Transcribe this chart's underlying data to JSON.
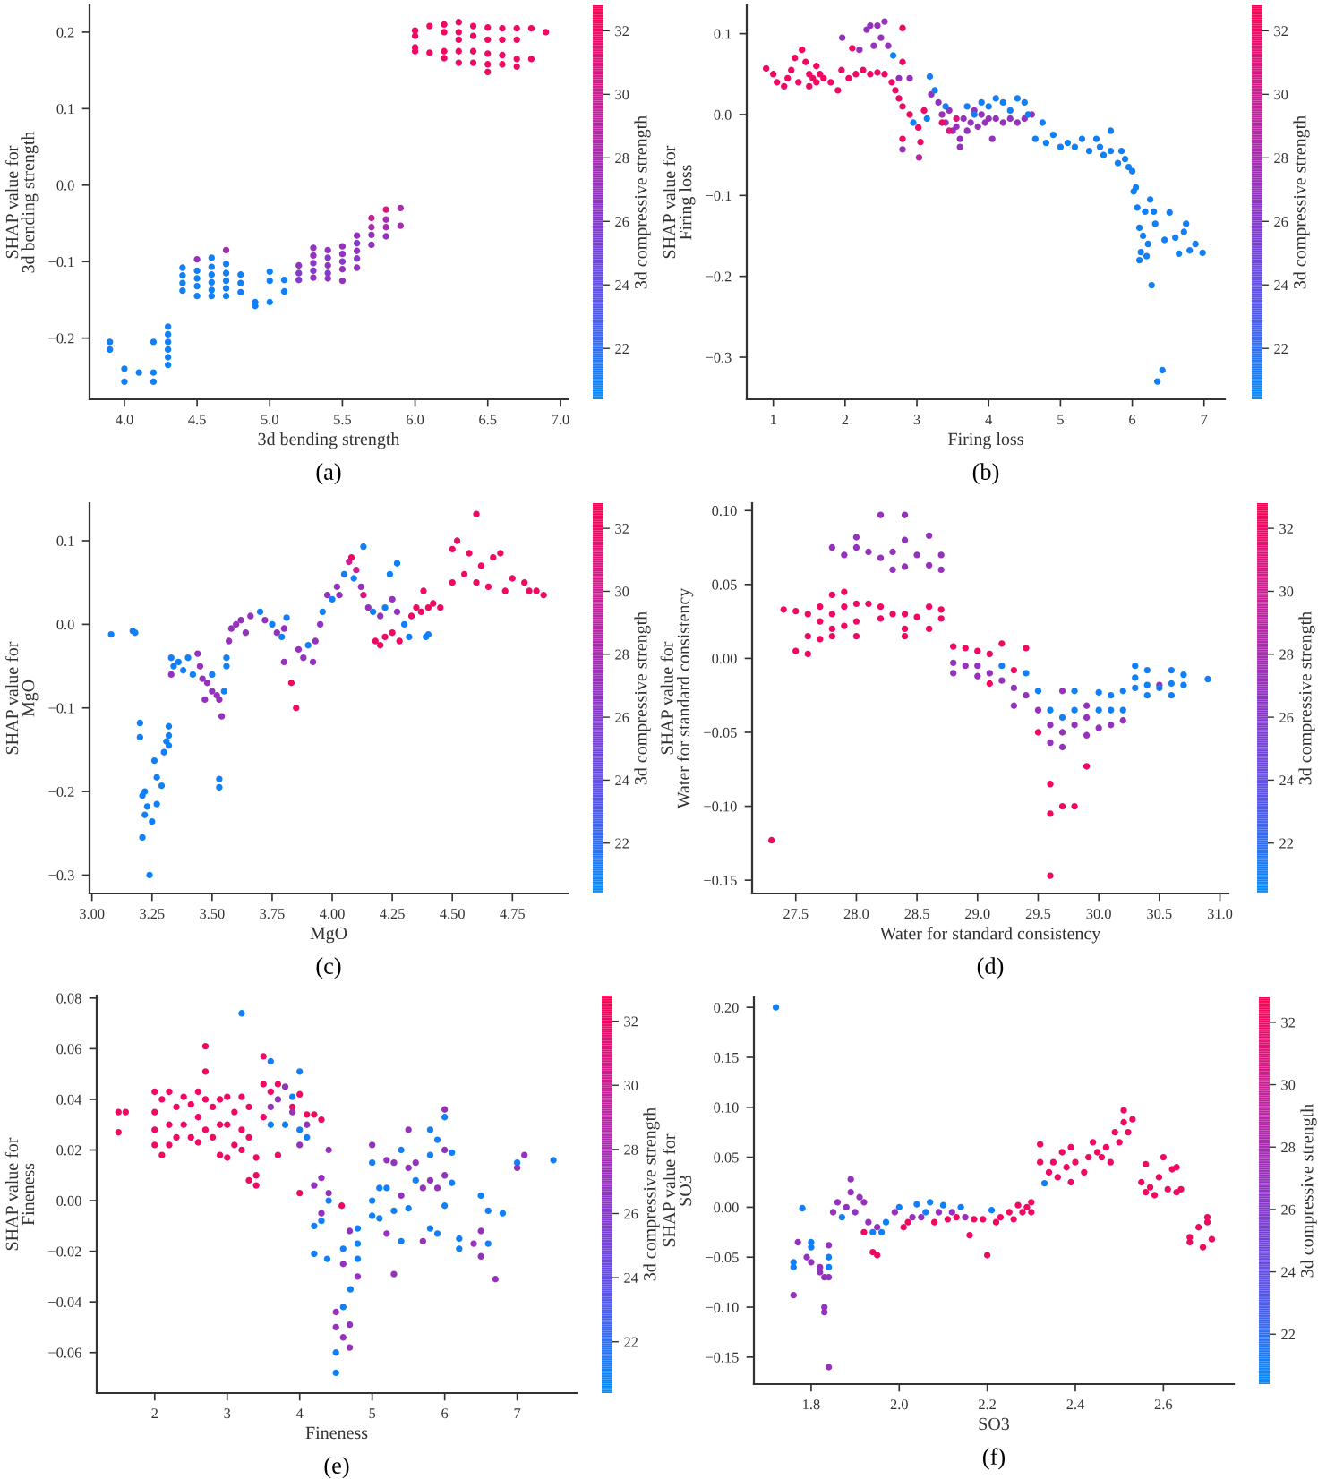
{
  "chart_data": [
    {
      "type": "scatter",
      "xlabel": "3d bending strength",
      "ylabel": "SHAP value for\n3d bending strength",
      "clabel": "3d compressive strength",
      "annotations": [
        "(a)"
      ],
      "marker": "circle",
      "x": [
        3.9,
        3.9,
        4.0,
        4.0,
        4.1,
        4.2,
        4.2,
        4.2,
        4.3,
        4.3,
        4.3,
        4.3,
        4.3,
        4.3,
        4.4,
        4.4,
        4.4,
        4.4,
        4.5,
        4.5,
        4.5,
        4.5,
        4.5,
        4.6,
        4.6,
        4.6,
        4.6,
        4.6,
        4.6,
        4.7,
        4.7,
        4.7,
        4.7,
        4.7,
        4.7,
        4.8,
        4.8,
        4.8,
        4.9,
        4.9,
        5.0,
        5.0,
        5.0,
        5.1,
        5.1,
        5.2,
        5.2,
        5.2,
        5.3,
        5.3,
        5.3,
        5.3,
        5.3,
        5.4,
        5.4,
        5.4,
        5.4,
        5.4,
        5.5,
        5.5,
        5.5,
        5.5,
        5.5,
        5.6,
        5.6,
        5.6,
        5.6,
        5.6,
        5.7,
        5.7,
        5.7,
        5.7,
        5.8,
        5.8,
        5.8,
        5.8,
        5.9,
        5.9,
        6.0,
        6.0,
        6.0,
        6.0,
        6.1,
        6.1,
        6.2,
        6.2,
        6.2,
        6.2,
        6.3,
        6.3,
        6.3,
        6.3,
        6.3,
        6.4,
        6.4,
        6.4,
        6.4,
        6.5,
        6.5,
        6.5,
        6.5,
        6.5,
        6.6,
        6.6,
        6.6,
        6.6,
        6.7,
        6.7,
        6.7,
        6.7,
        6.8,
        6.8,
        6.9
      ],
      "values": [
        -0.205,
        -0.215,
        -0.24,
        -0.257,
        -0.245,
        -0.205,
        -0.245,
        -0.257,
        -0.185,
        -0.195,
        -0.205,
        -0.215,
        -0.225,
        -0.235,
        -0.108,
        -0.118,
        -0.128,
        -0.138,
        -0.097,
        -0.112,
        -0.122,
        -0.132,
        -0.145,
        -0.095,
        -0.107,
        -0.117,
        -0.127,
        -0.137,
        -0.145,
        -0.085,
        -0.103,
        -0.115,
        -0.125,
        -0.135,
        -0.145,
        -0.117,
        -0.128,
        -0.14,
        -0.153,
        -0.158,
        -0.113,
        -0.125,
        -0.153,
        -0.124,
        -0.139,
        -0.105,
        -0.115,
        -0.124,
        -0.082,
        -0.092,
        -0.102,
        -0.112,
        -0.121,
        -0.085,
        -0.095,
        -0.105,
        -0.115,
        -0.122,
        -0.08,
        -0.09,
        -0.1,
        -0.11,
        -0.125,
        -0.066,
        -0.076,
        -0.086,
        -0.096,
        -0.108,
        -0.043,
        -0.055,
        -0.065,
        -0.078,
        -0.032,
        -0.045,
        -0.055,
        -0.067,
        -0.03,
        -0.053,
        0.202,
        0.195,
        0.18,
        0.175,
        0.208,
        0.173,
        0.21,
        0.2,
        0.175,
        0.166,
        0.213,
        0.2,
        0.19,
        0.175,
        0.16,
        0.208,
        0.195,
        0.175,
        0.16,
        0.206,
        0.19,
        0.172,
        0.158,
        0.148,
        0.205,
        0.19,
        0.17,
        0.158,
        0.205,
        0.19,
        0.165,
        0.155,
        0.205,
        0.165,
        0.2
      ],
      "cvalues": [
        21,
        21,
        21,
        21,
        21,
        21,
        21,
        21,
        21,
        21,
        21,
        21,
        21,
        21,
        21,
        21,
        21,
        21,
        27,
        21,
        21,
        21,
        21,
        21,
        21,
        21,
        21,
        21,
        21,
        28,
        21,
        21,
        21,
        21,
        21,
        21,
        21,
        21,
        21,
        21,
        21,
        21,
        21,
        21,
        21,
        27,
        26,
        26,
        27,
        27,
        26,
        26,
        27,
        27,
        26,
        27,
        26,
        27,
        27,
        27,
        26,
        27,
        27,
        27,
        26,
        27,
        26,
        27,
        30,
        28,
        27,
        27,
        31,
        28,
        28,
        27,
        28,
        28,
        32,
        32,
        32,
        32,
        32,
        32,
        32,
        32,
        32,
        32,
        32,
        32,
        32,
        32,
        32,
        32,
        32,
        32,
        32,
        32,
        32,
        32,
        32,
        32,
        32,
        32,
        32,
        32,
        32,
        32,
        32,
        32,
        32,
        32,
        32
      ],
      "xlim": [
        3.76,
        7.05
      ],
      "ylim": [
        -0.28,
        0.235
      ],
      "xticks": [
        {
          "value": 4,
          "label": "4.0"
        },
        4.5,
        {
          "value": 5,
          "label": "5.0"
        },
        5.5,
        {
          "value": 6,
          "label": "6.0"
        },
        6.5,
        {
          "value": 7,
          "label": "7.0"
        }
      ],
      "yticks": [
        {
          "value": -0.2,
          "label": "−0.2"
        },
        {
          "value": -0.1,
          "label": "−0.1"
        },
        {
          "value": 0,
          "label": "0.0"
        },
        0.1,
        0.2
      ],
      "clim": [
        20.4,
        32.8
      ],
      "cticks": [
        22,
        24,
        26,
        28,
        30,
        32
      ]
    },
    {
      "type": "scatter",
      "xlabel": "Firing loss",
      "ylabel": "SHAP value for\nFiring loss",
      "clabel": "3d compressive strength",
      "annotations": [
        "(b)"
      ],
      "marker": "circle",
      "x": [
        0.9,
        1.0,
        1.05,
        1.15,
        1.2,
        1.25,
        1.3,
        1.35,
        1.4,
        1.45,
        1.5,
        1.5,
        1.55,
        1.6,
        1.6,
        1.65,
        1.7,
        1.8,
        1.9,
        1.95,
        2.05,
        2.1,
        2.15,
        2.25,
        2.35,
        2.45,
        2.55,
        2.65,
        2.7,
        2.75,
        2.8,
        2.8,
        1.96,
        2.2,
        2.3,
        2.35,
        2.4,
        2.45,
        2.55,
        2.5,
        2.6,
        2.75,
        2.8,
        2.9,
        2.67,
        2.8,
        2.8,
        2.9,
        2.95,
        3.02,
        3.03,
        3.05,
        3.1,
        3.14,
        3.18,
        3.2,
        3.25,
        3.3,
        3.35,
        3.4,
        3.45,
        3.5,
        3.55,
        3.6,
        3.6,
        3.65,
        3.7,
        3.75,
        3.8,
        3.85,
        3.9,
        3.95,
        4.0,
        4.05,
        4.1,
        4.2,
        4.3,
        4.4,
        4.5,
        4.6,
        3.35,
        3.45,
        3.55,
        3.4,
        3.7,
        3.8,
        3.9,
        4.0,
        4.1,
        4.2,
        4.3,
        4.4,
        4.5,
        4.55,
        4.65,
        4.75,
        4.8,
        4.9,
        5.0,
        5.1,
        5.2,
        5.3,
        5.4,
        5.5,
        5.55,
        5.6,
        5.7,
        5.7,
        5.8,
        5.85,
        5.9,
        5.95,
        6.0,
        6.02,
        6.05,
        6.07,
        6.1,
        6.1,
        6.12,
        6.15,
        6.18,
        6.2,
        6.22,
        6.25,
        6.27,
        6.3,
        6.32,
        6.35,
        6.42,
        6.45,
        6.52,
        6.6,
        6.65,
        6.72,
        6.75,
        6.8,
        6.88,
        6.98
      ],
      "values": [
        0.057,
        0.05,
        0.04,
        0.035,
        0.045,
        0.055,
        0.07,
        0.04,
        0.08,
        0.065,
        0.035,
        0.05,
        0.045,
        0.06,
        0.04,
        0.05,
        0.045,
        0.04,
        0.03,
        0.055,
        0.045,
        0.082,
        0.05,
        0.055,
        0.05,
        0.052,
        0.05,
        0.04,
        0.03,
        0.02,
        0.107,
        0.065,
        0.095,
        0.08,
        0.105,
        0.11,
        0.085,
        0.11,
        0.115,
        0.095,
        0.085,
        0.045,
        -0.043,
        0.045,
        0.073,
        0.01,
        -0.03,
        0.0,
        -0.01,
        -0.016,
        -0.053,
        -0.034,
        0.005,
        -0.005,
        0.047,
        0.025,
        0.03,
        0.015,
        0.0,
        -0.01,
        0.005,
        -0.02,
        -0.015,
        -0.03,
        -0.04,
        -0.005,
        -0.02,
        -0.01,
        0.005,
        -0.015,
        0.0,
        -0.01,
        -0.005,
        -0.03,
        -0.005,
        -0.01,
        -0.005,
        -0.01,
        -0.005,
        0.0,
        -0.01,
        -0.02,
        -0.005,
        0.01,
        0.01,
        0.0,
        0.015,
        0.01,
        0.02,
        0.015,
        0.005,
        0.02,
        0.015,
        0.0,
        -0.03,
        -0.01,
        -0.035,
        -0.025,
        -0.04,
        -0.035,
        -0.04,
        -0.03,
        -0.045,
        -0.03,
        -0.04,
        -0.05,
        -0.02,
        -0.045,
        -0.06,
        -0.045,
        -0.055,
        -0.065,
        -0.07,
        -0.095,
        -0.09,
        -0.115,
        -0.14,
        -0.18,
        -0.17,
        -0.15,
        -0.12,
        -0.175,
        -0.16,
        -0.105,
        -0.211,
        -0.12,
        -0.135,
        -0.33,
        -0.316,
        -0.155,
        -0.121,
        -0.152,
        -0.172,
        -0.145,
        -0.135,
        -0.168,
        -0.16,
        -0.171
      ],
      "cvalues": [
        32,
        32,
        32,
        32,
        32,
        32,
        32,
        32,
        32,
        32,
        32,
        32,
        32,
        32,
        32,
        32,
        32,
        32,
        32,
        32,
        32,
        32,
        32,
        32,
        32,
        32,
        32,
        32,
        32,
        32,
        32,
        32,
        27,
        27,
        27,
        27,
        27,
        27,
        27,
        27,
        27,
        27,
        27,
        27,
        21,
        32,
        32,
        32,
        21,
        32,
        29,
        32,
        32,
        21,
        21,
        27,
        21,
        27,
        27,
        27,
        27,
        27,
        27,
        27,
        27,
        27,
        27,
        27,
        27,
        27,
        27,
        27,
        27,
        27,
        27,
        27,
        27,
        27,
        27,
        27,
        32,
        31,
        31,
        21,
        21,
        21,
        21,
        21,
        21,
        21,
        21,
        21,
        21,
        21,
        21,
        21,
        21,
        21,
        21,
        21,
        21,
        21,
        21,
        21,
        21,
        21,
        21,
        21,
        21,
        21,
        21,
        21,
        21,
        21,
        21,
        21,
        21,
        21,
        21,
        21,
        21,
        21,
        21,
        21,
        21,
        21,
        21,
        21,
        21,
        21,
        21,
        21,
        21,
        21,
        21,
        21,
        21,
        21
      ],
      "xlim": [
        0.63,
        7.29
      ],
      "ylim": [
        -0.352,
        0.135
      ],
      "xticks": [
        1,
        2,
        3,
        4,
        5,
        6,
        7
      ],
      "yticks": [
        {
          "value": -0.3,
          "label": "−0.3"
        },
        {
          "value": -0.2,
          "label": "−0.2"
        },
        {
          "value": -0.1,
          "label": "−0.1"
        },
        {
          "value": 0,
          "label": "0.0"
        },
        0.1
      ],
      "clim": [
        20.4,
        32.8
      ],
      "cticks": [
        22,
        24,
        26,
        28,
        30,
        32
      ]
    },
    {
      "type": "scatter",
      "xlabel": "MgO",
      "ylabel": "SHAP value for\nMgO",
      "clabel": "3d compressive strength",
      "annotations": [
        "(c)"
      ],
      "marker": "circle",
      "x": [
        3.08,
        3.17,
        3.18,
        3.2,
        3.2,
        3.21,
        3.21,
        3.22,
        3.22,
        3.23,
        3.24,
        3.25,
        3.26,
        3.27,
        3.27,
        3.29,
        3.3,
        3.31,
        3.32,
        3.32,
        3.32,
        3.33,
        3.34,
        3.36,
        3.38,
        3.4,
        3.42,
        3.44,
        3.45,
        3.46,
        3.48,
        3.5,
        3.5,
        3.52,
        3.53,
        3.54,
        3.53,
        3.53,
        3.55,
        3.56,
        3.56,
        3.33,
        3.47,
        3.57,
        3.58,
        3.6,
        3.62,
        3.64,
        3.66,
        3.7,
        3.72,
        3.75,
        3.77,
        3.79,
        3.8,
        3.81,
        3.8,
        3.83,
        3.85,
        3.86,
        3.88,
        3.9,
        3.92,
        3.93,
        3.95,
        3.96,
        3.98,
        4.0,
        4.02,
        4.03,
        4.05,
        4.07,
        4.08,
        4.09,
        4.1,
        4.12,
        4.13,
        4.13,
        4.15,
        4.17,
        4.2,
        4.22,
        4.25,
        4.27,
        4.24,
        4.27,
        4.18,
        4.2,
        4.22,
        4.25,
        4.28,
        4.3,
        4.32,
        4.33,
        4.35,
        4.37,
        4.4,
        4.42,
        4.45,
        4.38,
        4.39,
        4.4,
        4.5,
        4.5,
        4.52,
        4.55,
        4.57,
        4.6,
        4.6,
        4.62,
        4.65,
        4.67,
        4.7,
        4.72,
        4.75,
        4.8,
        4.82,
        4.85,
        4.88
      ],
      "values": [
        -0.012,
        -0.008,
        -0.01,
        -0.118,
        -0.135,
        -0.205,
        -0.255,
        -0.2,
        -0.228,
        -0.218,
        -0.3,
        -0.236,
        -0.163,
        -0.183,
        -0.215,
        -0.193,
        -0.153,
        -0.14,
        -0.122,
        -0.133,
        -0.145,
        -0.04,
        -0.05,
        -0.045,
        -0.055,
        -0.04,
        -0.06,
        -0.035,
        -0.05,
        -0.065,
        -0.07,
        -0.08,
        -0.06,
        -0.085,
        -0.09,
        -0.11,
        -0.185,
        -0.195,
        -0.08,
        -0.04,
        -0.05,
        -0.06,
        -0.09,
        -0.02,
        -0.005,
        0.0,
        0.005,
        -0.01,
        0.01,
        0.015,
        0.005,
        0.0,
        -0.01,
        -0.015,
        -0.005,
        0.008,
        -0.045,
        -0.07,
        -0.1,
        -0.03,
        -0.04,
        -0.025,
        -0.045,
        -0.02,
        0.0,
        0.015,
        0.035,
        0.03,
        0.045,
        0.035,
        0.06,
        0.075,
        0.08,
        0.055,
        0.065,
        0.045,
        0.093,
        0.035,
        0.02,
        0.015,
        0.01,
        0.02,
        0.03,
        0.015,
        0.06,
        0.073,
        -0.02,
        -0.025,
        -0.015,
        -0.01,
        -0.02,
        0.0,
        -0.015,
        0.01,
        0.02,
        0.015,
        0.02,
        0.025,
        0.02,
        0.04,
        -0.015,
        -0.012,
        0.05,
        0.09,
        0.1,
        0.06,
        0.085,
        0.05,
        0.132,
        0.07,
        0.045,
        0.08,
        0.085,
        0.04,
        0.055,
        0.05,
        0.04,
        0.04,
        0.035
      ],
      "cvalues": [
        21,
        21,
        21,
        21,
        21,
        21,
        21,
        21,
        21,
        21,
        21,
        21,
        21,
        21,
        21,
        21,
        21,
        21,
        21,
        21,
        21,
        21,
        21,
        21,
        21,
        21,
        21,
        27,
        27,
        27,
        27,
        27,
        21,
        27,
        27,
        27,
        21,
        21,
        21,
        21,
        21,
        27,
        27,
        27,
        27,
        27,
        27,
        27,
        27,
        21,
        27,
        21,
        27,
        21,
        27,
        21,
        27,
        32,
        32,
        27,
        27,
        21,
        27,
        27,
        27,
        21,
        27,
        21,
        27,
        27,
        21,
        30,
        32,
        21,
        30,
        27,
        21,
        31,
        27,
        21,
        27,
        21,
        27,
        27,
        21,
        21,
        32,
        32,
        32,
        32,
        32,
        21,
        21,
        32,
        32,
        32,
        32,
        32,
        32,
        32,
        21,
        21,
        32,
        32,
        32,
        32,
        32,
        32,
        32,
        32,
        32,
        32,
        32,
        32,
        32,
        32,
        32,
        32,
        32
      ],
      "xlim": [
        2.99,
        4.98
      ],
      "ylim": [
        -0.322,
        0.145
      ],
      "xticks": [
        {
          "value": 3.0,
          "label": "3.00"
        },
        3.25,
        {
          "value": 3.5,
          "label": "3.50"
        },
        3.75,
        {
          "value": 4.0,
          "label": "4.00"
        },
        4.25,
        {
          "value": 4.5,
          "label": "4.50"
        },
        4.75
      ],
      "yticks": [
        {
          "value": -0.3,
          "label": "−0.3"
        },
        {
          "value": -0.2,
          "label": "−0.2"
        },
        {
          "value": -0.1,
          "label": "−0.1"
        },
        {
          "value": 0,
          "label": "0.0"
        },
        0.1
      ],
      "clim": [
        20.4,
        32.8
      ],
      "cticks": [
        22,
        24,
        26,
        28,
        30,
        32
      ]
    },
    {
      "type": "scatter",
      "xlabel": "Water for standard consistency",
      "ylabel": "SHAP value for\nWater for standard consistency",
      "clabel": "3d compressive strength",
      "annotations": [
        "(d)"
      ],
      "marker": "circle",
      "x": [
        27.3,
        27.4,
        27.5,
        27.5,
        27.6,
        27.6,
        27.6,
        27.7,
        27.7,
        27.7,
        27.8,
        27.8,
        27.8,
        27.8,
        27.9,
        27.9,
        27.9,
        28.0,
        28.0,
        28.0,
        28.1,
        28.2,
        28.2,
        28.3,
        28.4,
        28.4,
        28.4,
        28.5,
        28.6,
        28.6,
        28.7,
        28.7,
        27.8,
        27.9,
        28.0,
        28.0,
        28.1,
        28.2,
        28.2,
        28.3,
        28.3,
        28.4,
        28.4,
        28.4,
        28.5,
        28.6,
        28.6,
        28.7,
        28.7,
        28.8,
        28.8,
        28.8,
        28.9,
        28.9,
        29.0,
        29.0,
        29.0,
        29.1,
        29.1,
        29.1,
        29.2,
        29.2,
        29.2,
        29.3,
        29.3,
        29.3,
        29.4,
        29.4,
        29.4,
        29.5,
        29.5,
        29.5,
        29.6,
        29.6,
        29.6,
        29.6,
        29.6,
        29.6,
        29.7,
        29.7,
        29.7,
        29.7,
        29.7,
        29.8,
        29.8,
        29.8,
        29.8,
        29.9,
        29.9,
        29.9,
        29.9,
        30.0,
        30.0,
        30.0,
        30.1,
        30.1,
        30.1,
        30.2,
        30.2,
        30.2,
        30.3,
        30.3,
        30.3,
        30.4,
        30.4,
        30.4,
        30.5,
        30.5,
        30.6,
        30.6,
        30.6,
        30.7,
        30.7,
        30.9
      ],
      "values": [
        -0.123,
        0.033,
        0.032,
        0.005,
        0.03,
        0.015,
        0.003,
        0.035,
        0.025,
        0.013,
        0.043,
        0.03,
        0.02,
        0.015,
        0.045,
        0.035,
        0.022,
        0.037,
        0.025,
        0.015,
        0.037,
        0.035,
        0.027,
        0.03,
        0.03,
        0.02,
        0.015,
        0.028,
        0.035,
        0.02,
        0.033,
        0.027,
        0.075,
        0.07,
        0.082,
        0.075,
        0.072,
        0.097,
        0.068,
        0.072,
        0.06,
        0.097,
        0.08,
        0.062,
        0.07,
        0.083,
        0.063,
        0.07,
        0.06,
        0.008,
        -0.003,
        -0.01,
        0.007,
        -0.005,
        0.005,
        -0.005,
        -0.012,
        0.003,
        -0.017,
        -0.01,
        0.01,
        -0.005,
        -0.015,
        -0.008,
        -0.02,
        -0.032,
        0.007,
        -0.01,
        -0.025,
        -0.022,
        -0.035,
        -0.05,
        -0.035,
        -0.045,
        -0.057,
        -0.085,
        -0.105,
        -0.147,
        -0.022,
        -0.04,
        -0.05,
        -0.06,
        -0.1,
        -0.022,
        -0.035,
        -0.045,
        -0.1,
        -0.032,
        -0.04,
        -0.052,
        -0.073,
        -0.023,
        -0.035,
        -0.047,
        -0.025,
        -0.035,
        -0.045,
        -0.022,
        -0.035,
        -0.042,
        -0.005,
        -0.013,
        -0.02,
        -0.008,
        -0.018,
        -0.025,
        -0.018,
        -0.02,
        -0.008,
        -0.017,
        -0.025,
        -0.011,
        -0.018,
        -0.014
      ],
      "cvalues": [
        32,
        32,
        32,
        32,
        32,
        32,
        32,
        32,
        32,
        32,
        32,
        32,
        32,
        32,
        32,
        32,
        32,
        32,
        32,
        32,
        32,
        32,
        32,
        32,
        32,
        32,
        32,
        32,
        32,
        32,
        32,
        32,
        27,
        27,
        27,
        27,
        27,
        27,
        27,
        27,
        27,
        27,
        27,
        27,
        27,
        27,
        27,
        27,
        27,
        32,
        27,
        27,
        32,
        27,
        32,
        27,
        27,
        32,
        32,
        27,
        32,
        21,
        27,
        32,
        27,
        27,
        32,
        21,
        27,
        21,
        27,
        32,
        21,
        27,
        27,
        32,
        32,
        32,
        27,
        21,
        27,
        27,
        32,
        21,
        21,
        27,
        32,
        27,
        27,
        27,
        32,
        21,
        21,
        27,
        21,
        21,
        27,
        21,
        21,
        27,
        21,
        21,
        21,
        21,
        21,
        21,
        27,
        21,
        21,
        21,
        21,
        21,
        21,
        21
      ],
      "xlim": [
        27.14,
        31.07
      ],
      "ylim": [
        -0.159,
        0.105
      ],
      "xticks": [
        27.5,
        {
          "value": 28,
          "label": "28.0"
        },
        28.5,
        {
          "value": 29,
          "label": "29.0"
        },
        29.5,
        {
          "value": 30,
          "label": "30.0"
        },
        30.5,
        {
          "value": 31,
          "label": "31.0"
        }
      ],
      "yticks": [
        {
          "value": -0.15,
          "label": "−0.15"
        },
        {
          "value": -0.1,
          "label": "−0.10"
        },
        {
          "value": -0.05,
          "label": "−0.05"
        },
        {
          "value": 0,
          "label": "0.00"
        },
        0.05,
        {
          "value": 0.1,
          "label": "0.10"
        }
      ],
      "clim": [
        20.4,
        32.8
      ],
      "cticks": [
        22,
        24,
        26,
        28,
        30,
        32
      ]
    },
    {
      "type": "scatter",
      "xlabel": "Fineness",
      "ylabel": "SHAP value for\nFineness",
      "clabel": "3d compressive strength",
      "annotations": [
        "(e)"
      ],
      "marker": "circle",
      "x": [
        1.5,
        1.5,
        1.6,
        2.0,
        2.0,
        2.0,
        2.0,
        2.1,
        2.1,
        2.2,
        2.2,
        2.2,
        2.3,
        2.3,
        2.4,
        2.4,
        2.5,
        2.5,
        2.6,
        2.6,
        2.6,
        2.7,
        2.7,
        2.7,
        2.7,
        2.8,
        2.8,
        2.9,
        2.9,
        2.9,
        3.0,
        3.0,
        3.0,
        3.1,
        3.1,
        3.2,
        3.2,
        3.2,
        3.3,
        3.3,
        3.3,
        3.4,
        3.4,
        3.4,
        3.5,
        3.5,
        3.5,
        3.6,
        3.7,
        3.7,
        3.9,
        4.0,
        4.0,
        4.1,
        4.2,
        4.3,
        3.2,
        3.6,
        3.6,
        3.8,
        3.9,
        4.0,
        4.0,
        4.1,
        3.6,
        3.7,
        3.8,
        3.9,
        4.0,
        4.1,
        4.2,
        4.2,
        4.2,
        4.3,
        4.3,
        4.3,
        4.4,
        4.4,
        4.4,
        4.38,
        4.5,
        4.5,
        4.5,
        4.5,
        4.58,
        4.6,
        4.6,
        4.6,
        4.6,
        4.69,
        4.69,
        4.69,
        4.8,
        4.8,
        4.8,
        4.7,
        4.8,
        5.0,
        5.0,
        5.0,
        5.0,
        5.1,
        5.1,
        5.2,
        5.2,
        5.2,
        5.3,
        5.3,
        5.3,
        5.4,
        5.4,
        5.4,
        5.5,
        5.5,
        5.5,
        5.6,
        5.6,
        5.7,
        5.7,
        5.8,
        5.8,
        5.8,
        5.8,
        5.9,
        5.9,
        5.9,
        6.0,
        6.0,
        6.0,
        6.0,
        6.0,
        6.1,
        6.1,
        6.2,
        6.2,
        6.4,
        6.5,
        6.5,
        6.5,
        6.6,
        6.6,
        6.7,
        6.8,
        7.0,
        7.0,
        7.1,
        7.5
      ],
      "values": [
        0.035,
        0.027,
        0.035,
        0.043,
        0.035,
        0.028,
        0.022,
        0.04,
        0.018,
        0.043,
        0.03,
        0.022,
        0.037,
        0.025,
        0.041,
        0.03,
        0.038,
        0.025,
        0.043,
        0.033,
        0.023,
        0.061,
        0.051,
        0.04,
        0.028,
        0.037,
        0.025,
        0.04,
        0.03,
        0.018,
        0.041,
        0.03,
        0.017,
        0.035,
        0.022,
        0.041,
        0.028,
        0.02,
        0.037,
        0.025,
        0.008,
        0.017,
        0.01,
        0.006,
        0.057,
        0.046,
        0.033,
        0.043,
        0.046,
        0.018,
        0.037,
        0.042,
        0.003,
        0.034,
        0.034,
        0.032,
        0.074,
        0.055,
        0.03,
        0.03,
        0.041,
        0.051,
        0.028,
        0.025,
        0.037,
        0.04,
        0.045,
        0.035,
        0.022,
        0.03,
        -0.021,
        -0.01,
        0.006,
        0.009,
        -0.005,
        -0.008,
        0.02,
        0.003,
        0.0,
        -0.023,
        -0.044,
        -0.05,
        -0.06,
        -0.068,
        -0.002,
        -0.019,
        -0.025,
        -0.042,
        -0.054,
        -0.012,
        -0.049,
        -0.058,
        -0.011,
        -0.023,
        -0.03,
        -0.035,
        -0.017,
        0.022,
        0.015,
        0.0,
        -0.006,
        0.005,
        -0.007,
        0.016,
        0.005,
        -0.013,
        0.015,
        -0.004,
        -0.029,
        0.02,
        -0.016,
        0.002,
        0.028,
        0.013,
        -0.003,
        0.015,
        0.008,
        0.005,
        -0.016,
        0.028,
        0.018,
        0.008,
        -0.011,
        0.024,
        -0.013,
        0.005,
        0.036,
        0.033,
        0.02,
        0.01,
        -0.002,
        0.019,
        0.007,
        -0.015,
        -0.019,
        -0.017,
        0.002,
        -0.012,
        -0.022,
        -0.004,
        -0.017,
        -0.031,
        -0.005,
        0.015,
        0.013,
        0.018,
        0.016
      ],
      "cvalues": [
        32,
        32,
        32,
        32,
        32,
        32,
        32,
        32,
        32,
        32,
        32,
        32,
        32,
        32,
        32,
        32,
        32,
        32,
        32,
        32,
        32,
        32,
        32,
        32,
        32,
        32,
        32,
        32,
        32,
        32,
        32,
        32,
        32,
        32,
        32,
        32,
        32,
        32,
        32,
        32,
        32,
        32,
        32,
        32,
        32,
        32,
        32,
        32,
        32,
        32,
        32,
        32,
        32,
        32,
        32,
        32,
        21,
        21,
        21,
        21,
        21,
        21,
        21,
        21,
        27,
        27,
        27,
        27,
        27,
        27,
        21,
        21,
        27,
        27,
        27,
        21,
        27,
        27,
        21,
        21,
        27,
        27,
        21,
        21,
        32,
        21,
        27,
        21,
        27,
        27,
        27,
        27,
        21,
        21,
        27,
        21,
        21,
        27,
        21,
        21,
        21,
        21,
        21,
        27,
        21,
        27,
        27,
        21,
        27,
        21,
        21,
        27,
        27,
        27,
        21,
        27,
        21,
        27,
        27,
        21,
        21,
        27,
        21,
        21,
        21,
        27,
        27,
        21,
        27,
        27,
        21,
        21,
        21,
        21,
        21,
        27,
        21,
        27,
        27,
        21,
        21,
        27,
        21,
        21,
        27,
        27,
        21
      ],
      "xlim": [
        1.2,
        7.82
      ],
      "ylim": [
        -0.076,
        0.081
      ],
      "xticks": [
        2,
        3,
        4,
        5,
        6,
        7
      ],
      "yticks": [
        {
          "value": -0.06,
          "label": "−0.06"
        },
        {
          "value": -0.04,
          "label": "−0.04"
        },
        {
          "value": -0.02,
          "label": "−0.02"
        },
        {
          "value": 0,
          "label": "0.00"
        },
        0.02,
        0.04,
        0.06,
        0.08
      ],
      "clim": [
        20.4,
        32.8
      ],
      "cticks": [
        22,
        24,
        26,
        28,
        30,
        32
      ]
    },
    {
      "type": "scatter",
      "xlabel": "SO3",
      "ylabel": "SHAP value for\nSO3",
      "clabel": "3d compressive strength",
      "annotations": [
        "(f)"
      ],
      "marker": "circle",
      "x": [
        1.72,
        1.76,
        1.76,
        1.76,
        1.77,
        1.78,
        1.79,
        1.8,
        1.8,
        1.8,
        1.82,
        1.82,
        1.83,
        1.83,
        1.83,
        1.84,
        1.84,
        1.84,
        1.84,
        1.84,
        1.85,
        1.86,
        1.87,
        1.88,
        1.89,
        1.89,
        1.9,
        1.91,
        1.92,
        1.92,
        1.93,
        1.94,
        1.94,
        1.95,
        1.95,
        1.96,
        1.97,
        1.99,
        2.0,
        2.01,
        2.02,
        2.03,
        2.04,
        2.05,
        2.06,
        2.07,
        2.08,
        2.09,
        2.1,
        2.11,
        2.12,
        2.13,
        2.14,
        2.15,
        2.16,
        2.17,
        2.19,
        2.2,
        2.21,
        2.22,
        2.23,
        2.25,
        2.26,
        2.27,
        2.28,
        2.29,
        2.3,
        2.3,
        2.32,
        2.32,
        2.33,
        2.34,
        2.35,
        2.36,
        2.37,
        2.38,
        2.39,
        2.39,
        2.4,
        2.42,
        2.43,
        2.44,
        2.45,
        2.46,
        2.47,
        2.48,
        2.49,
        2.5,
        2.51,
        2.51,
        2.52,
        2.53,
        2.55,
        2.56,
        2.56,
        2.57,
        2.58,
        2.59,
        2.6,
        2.61,
        2.62,
        2.63,
        2.63,
        2.64,
        2.66,
        2.66,
        2.68,
        2.69,
        2.7,
        2.7,
        2.71
      ],
      "values": [
        0.2,
        -0.055,
        -0.06,
        -0.088,
        -0.035,
        -0.001,
        -0.05,
        -0.035,
        -0.04,
        -0.055,
        -0.06,
        -0.065,
        -0.07,
        -0.1,
        -0.105,
        -0.05,
        -0.06,
        -0.07,
        -0.16,
        -0.038,
        -0.005,
        0.005,
        -0.01,
        0.0,
        0.028,
        0.015,
        -0.005,
        0.01,
        0.005,
        -0.025,
        -0.015,
        -0.025,
        -0.045,
        -0.048,
        -0.02,
        -0.025,
        -0.015,
        -0.005,
        0.0,
        -0.02,
        -0.015,
        -0.01,
        0.003,
        -0.01,
        -0.005,
        0.005,
        -0.015,
        -0.005,
        0.002,
        -0.012,
        -0.005,
        -0.01,
        0.0,
        -0.01,
        -0.028,
        -0.012,
        -0.012,
        -0.048,
        -0.003,
        -0.015,
        -0.01,
        -0.005,
        -0.012,
        0.002,
        -0.005,
        0.0,
        0.005,
        -0.005,
        0.045,
        0.063,
        0.024,
        0.035,
        0.045,
        0.03,
        0.055,
        0.04,
        0.025,
        0.06,
        0.045,
        0.035,
        0.05,
        0.065,
        0.055,
        0.05,
        0.06,
        0.045,
        0.075,
        0.065,
        0.097,
        0.085,
        0.075,
        0.088,
        0.025,
        0.043,
        0.015,
        0.02,
        0.012,
        0.03,
        0.05,
        0.018,
        0.038,
        0.04,
        0.015,
        0.018,
        -0.03,
        -0.035,
        -0.02,
        -0.04,
        -0.015,
        -0.01,
        -0.032
      ],
      "cvalues": [
        21,
        21,
        21,
        27,
        27,
        21,
        27,
        21,
        21,
        27,
        27,
        27,
        27,
        27,
        27,
        21,
        21,
        27,
        27,
        27,
        27,
        27,
        21,
        27,
        27,
        27,
        27,
        27,
        27,
        32,
        27,
        21,
        32,
        32,
        27,
        21,
        21,
        27,
        21,
        32,
        32,
        27,
        21,
        27,
        21,
        21,
        32,
        27,
        21,
        32,
        27,
        32,
        21,
        27,
        32,
        32,
        32,
        32,
        21,
        32,
        32,
        32,
        32,
        32,
        32,
        32,
        32,
        32,
        32,
        32,
        21,
        32,
        32,
        32,
        32,
        32,
        32,
        32,
        32,
        32,
        32,
        32,
        32,
        32,
        32,
        32,
        32,
        32,
        32,
        32,
        32,
        32,
        32,
        32,
        32,
        32,
        32,
        32,
        32,
        32,
        32,
        32,
        32,
        32,
        32,
        32,
        32,
        32,
        32,
        32,
        32
      ],
      "xlim": [
        1.67,
        2.76
      ],
      "ylim": [
        -0.177,
        0.21
      ],
      "xticks": [
        1.8,
        {
          "value": 2,
          "label": "2.0"
        },
        2.2,
        2.4,
        2.6
      ],
      "yticks": [
        {
          "value": -0.15,
          "label": "−0.15"
        },
        {
          "value": -0.1,
          "label": "−0.10"
        },
        {
          "value": -0.05,
          "label": "−0.05"
        },
        {
          "value": 0,
          "label": "0.00"
        },
        0.05,
        {
          "value": 0.1,
          "label": "0.10"
        },
        0.15,
        {
          "value": 0.2,
          "label": "0.20"
        }
      ],
      "clim": [
        20.4,
        32.8
      ],
      "cticks": [
        22,
        24,
        26,
        28,
        30,
        32
      ]
    }
  ]
}
